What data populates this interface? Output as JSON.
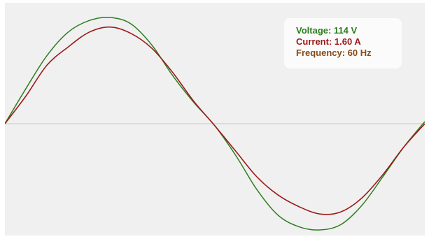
{
  "colors": {
    "voltage": "#2e7d1f",
    "current": "#9b1a1a",
    "frequency": "#8a4a12",
    "axis": "#c8c8c8",
    "background": "#f0f0f0"
  },
  "readout": {
    "voltage_text": "Voltage: 114 V",
    "current_text": "Current: 1.60 A",
    "frequency_text": "Frequency: 60 Hz"
  },
  "chart_data": {
    "type": "line",
    "title": "",
    "xlabel": "",
    "ylabel": "",
    "grid": false,
    "legend": "none",
    "xlim": [
      0,
      1
    ],
    "ylim": [
      -1.1,
      1.1
    ],
    "series": [
      {
        "x": [
          0,
          0.05,
          0.1,
          0.15,
          0.2,
          0.25,
          0.3,
          0.35,
          0.4,
          0.45,
          0.5,
          0.55,
          0.6,
          0.65,
          0.7,
          0.75,
          0.8,
          0.85,
          0.9,
          0.95,
          1.0
        ],
        "values": [
          0.0,
          0.33,
          0.64,
          0.86,
          0.97,
          1.0,
          0.94,
          0.74,
          0.45,
          0.2,
          -0.02,
          -0.3,
          -0.62,
          -0.86,
          -0.97,
          -1.0,
          -0.95,
          -0.77,
          -0.5,
          -0.22,
          0.02
        ]
      },
      {
        "x": [
          0,
          0.05,
          0.1,
          0.15,
          0.2,
          0.25,
          0.3,
          0.35,
          0.4,
          0.45,
          0.5,
          0.55,
          0.6,
          0.65,
          0.7,
          0.75,
          0.8,
          0.85,
          0.9,
          0.95,
          1.0
        ],
        "values": [
          0.0,
          0.26,
          0.55,
          0.72,
          0.86,
          0.91,
          0.85,
          0.71,
          0.48,
          0.21,
          -0.02,
          -0.26,
          -0.5,
          -0.67,
          -0.78,
          -0.85,
          -0.83,
          -0.7,
          -0.48,
          -0.22,
          0.0
        ]
      }
    ]
  }
}
